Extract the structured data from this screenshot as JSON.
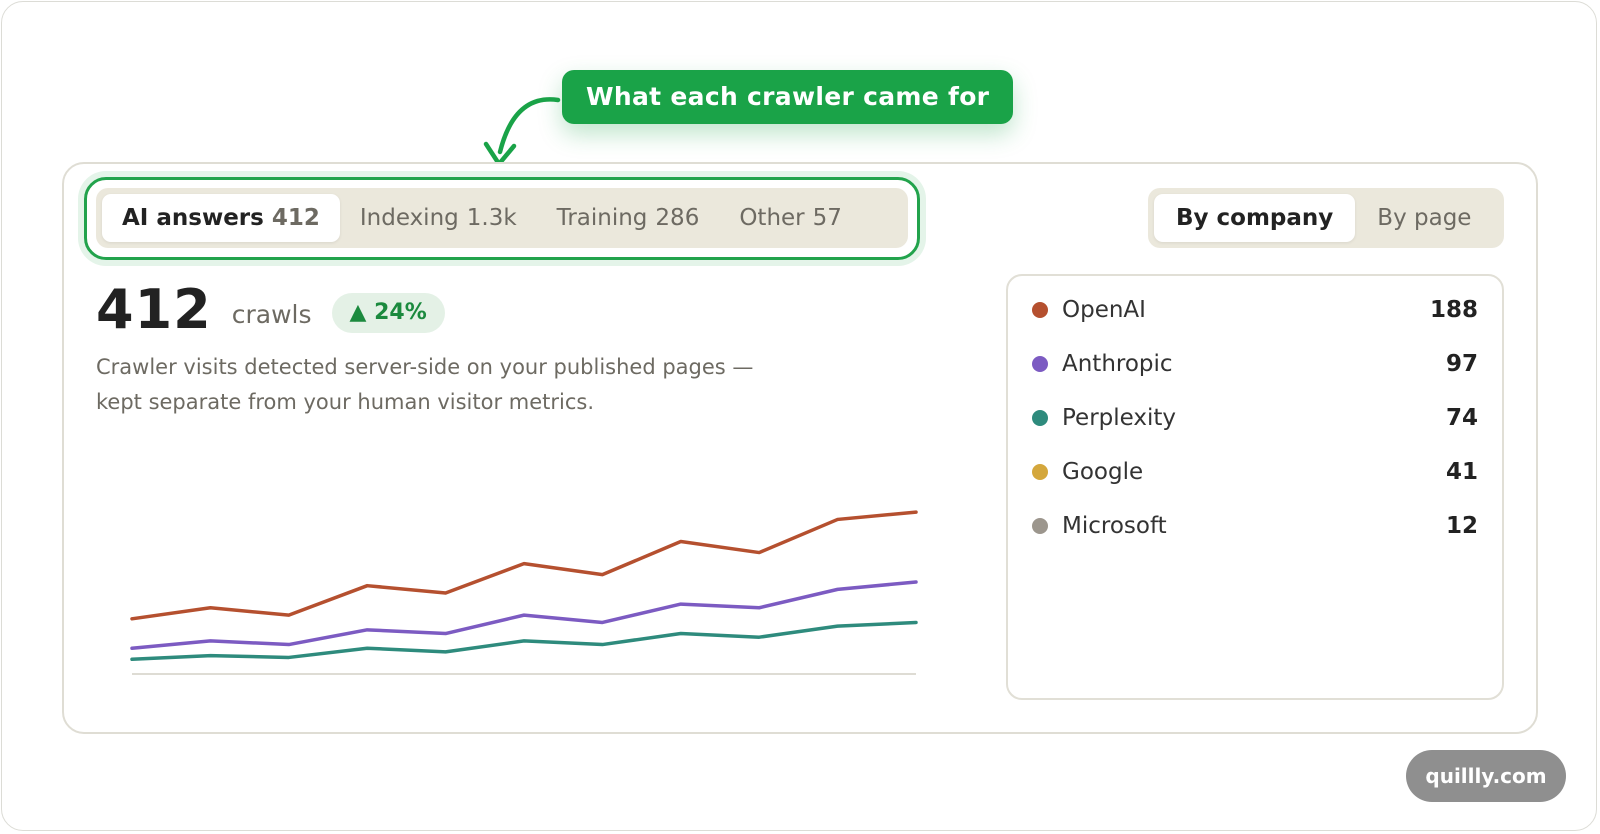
{
  "callout": {
    "label": "What each crawler came for"
  },
  "tabs": [
    {
      "label": "AI answers",
      "count": "412"
    },
    {
      "label": "Indexing",
      "count": "1.3k"
    },
    {
      "label": "Training",
      "count": "286"
    },
    {
      "label": "Other",
      "count": "57"
    }
  ],
  "view_toggle": {
    "options": [
      "By company",
      "By page"
    ],
    "selected": "By company"
  },
  "metric": {
    "value": "412",
    "unit": "crawls",
    "change": "▲ 24%"
  },
  "description": {
    "line1": "Crawler visits detected server-side on your published pages —",
    "line2": "kept separate from your human visitor metrics."
  },
  "legend": [
    {
      "name": "OpenAI",
      "count": "188",
      "color": "#b5502f"
    },
    {
      "name": "Anthropic",
      "count": "97",
      "color": "#7c5bc2"
    },
    {
      "name": "Perplexity",
      "count": "74",
      "color": "#2e8b7d"
    },
    {
      "name": "Google",
      "count": "41",
      "color": "#d4a73c"
    },
    {
      "name": "Microsoft",
      "count": "12",
      "color": "#9c968d"
    }
  ],
  "chart_data": {
    "type": "line",
    "series": [
      {
        "name": "OpenAI",
        "color": "#b5502f",
        "values": [
          15,
          18,
          16,
          24,
          22,
          30,
          27,
          36,
          33,
          42,
          44
        ]
      },
      {
        "name": "Anthropic",
        "color": "#7c5bc2",
        "values": [
          7,
          9,
          8,
          12,
          11,
          16,
          14,
          19,
          18,
          23,
          25
        ]
      },
      {
        "name": "Perplexity",
        "color": "#2e8b7d",
        "values": [
          4,
          5,
          4.5,
          7,
          6,
          9,
          8,
          11,
          10,
          13,
          14
        ]
      }
    ],
    "ylim": [
      0,
      50
    ],
    "grid": false
  },
  "watermark": "quillly.com"
}
